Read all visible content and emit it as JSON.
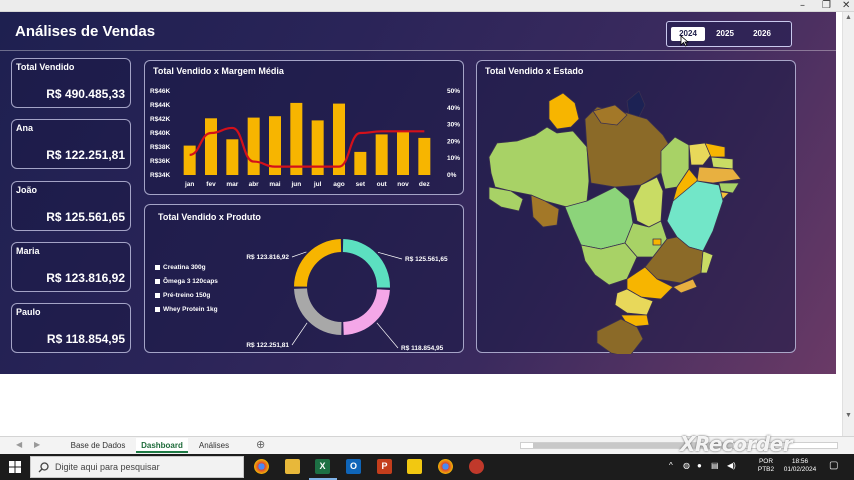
{
  "dashboard": {
    "title": "Análises de Vendas",
    "years": [
      "2024",
      "2025",
      "2026"
    ],
    "active_year": "2024"
  },
  "kpis": [
    {
      "label": "Total Vendido",
      "value": "R$ 490.485,33"
    },
    {
      "label": "Ana",
      "value": "R$ 122.251,81"
    },
    {
      "label": "João",
      "value": "R$ 125.561,65"
    },
    {
      "label": "Maria",
      "value": "R$ 123.816,92"
    },
    {
      "label": "Paulo",
      "value": "R$ 118.854,95"
    }
  ],
  "panels": {
    "sales_margin_title": "Total Vendido x Margem Média",
    "product_title": "Total Vendido x Produto",
    "state_title": "Total Vendido x Estado"
  },
  "chart_data": [
    {
      "type": "bar",
      "title": "Total Vendido x Margem Média",
      "categories": [
        "jan",
        "fev",
        "mar",
        "abr",
        "mai",
        "jun",
        "jul",
        "ago",
        "set",
        "out",
        "nov",
        "dez"
      ],
      "y_ticks": [
        "R$34K",
        "R$36K",
        "R$38K",
        "R$40K",
        "R$42K",
        "R$44K",
        "R$46K"
      ],
      "y2_ticks": [
        "0%",
        "10%",
        "20%",
        "30%",
        "40%",
        "50%"
      ],
      "ylim": [
        34000,
        46000
      ],
      "y2lim": [
        0,
        50
      ],
      "series": [
        {
          "type": "bar",
          "color": "#f7b500",
          "values": [
            38200,
            42100,
            39100,
            42200,
            42400,
            44300,
            41800,
            44200,
            37300,
            39800,
            40200,
            39300
          ]
        },
        {
          "type": "line",
          "color": "#d4101a",
          "values": [
            12,
            25,
            28,
            8,
            5,
            5,
            5,
            5,
            25,
            26,
            26,
            26
          ]
        }
      ]
    },
    {
      "type": "pie",
      "title": "Total Vendido x Produto",
      "categories": [
        "Creatina 300g",
        "Ômega 3 120caps",
        "Pré-treino 150g",
        "Whey Protein 1kg"
      ],
      "values": [
        125561.65,
        118854.95,
        122251.81,
        123816.92
      ],
      "data_labels": [
        "R$ 125.561,65",
        "R$ 118.854,95",
        "R$ 122.251,81",
        "R$ 123.816,92"
      ],
      "colors": [
        "#5ce0c0",
        "#f4a7e8",
        "#a8a8a8",
        "#f7b500"
      ]
    }
  ],
  "sheets": {
    "tabs": [
      "Base de Dados",
      "Dashboard",
      "Análises"
    ],
    "active": "Dashboard"
  },
  "taskbar": {
    "search_placeholder": "Digite aqui para pesquisar",
    "lang_top": "POR",
    "lang_bottom": "PTB2",
    "time": "18:56",
    "date": "01/02/2024"
  },
  "overlay": {
    "watermark": "XRecorder"
  }
}
